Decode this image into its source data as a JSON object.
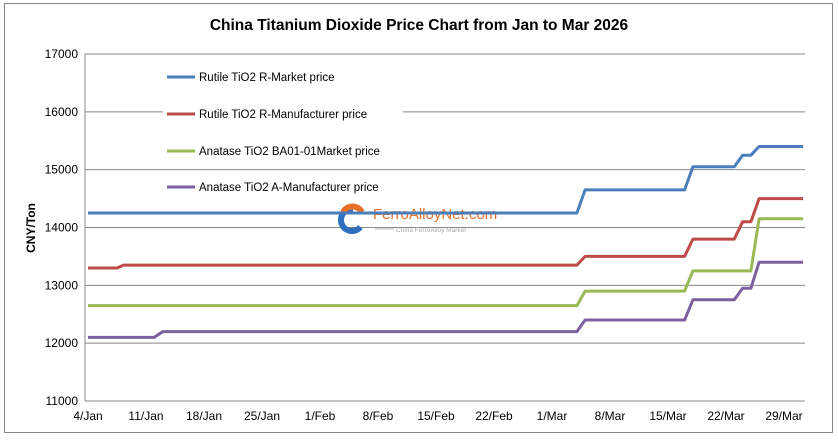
{
  "chart_data": {
    "type": "line",
    "title": "China Titanium Dioxide Price Chart from Jan to Mar 2026",
    "xlabel": "",
    "ylabel": "CNY/Ton",
    "ylim": [
      11000,
      17000
    ],
    "yticks": [
      11000,
      12000,
      13000,
      14000,
      15000,
      16000,
      17000
    ],
    "xlim_days": [
      0,
      86.5
    ],
    "x_unit": "days since 4/Jan",
    "xticks": [
      {
        "day": 0,
        "label": "4/Jan"
      },
      {
        "day": 7,
        "label": "11/Jan"
      },
      {
        "day": 14,
        "label": "18/Jan"
      },
      {
        "day": 21,
        "label": "25/Jan"
      },
      {
        "day": 28,
        "label": "1/Feb"
      },
      {
        "day": 35,
        "label": "8/Feb"
      },
      {
        "day": 42,
        "label": "15/Feb"
      },
      {
        "day": 49,
        "label": "22/Feb"
      },
      {
        "day": 56,
        "label": "1/Mar"
      },
      {
        "day": 63,
        "label": "8/Mar"
      },
      {
        "day": 70,
        "label": "15/Mar"
      },
      {
        "day": 77,
        "label": "22/Mar"
      },
      {
        "day": 84,
        "label": "29/Mar"
      }
    ],
    "grid": true,
    "legend_placement": "top-left",
    "series": [
      {
        "name": "Rutile TiO2 R-Market price",
        "color": "#4a7ebb",
        "points": [
          [
            0,
            14250
          ],
          [
            59,
            14250
          ],
          [
            60,
            14650
          ],
          [
            72,
            14650
          ],
          [
            73,
            15050
          ],
          [
            78,
            15050
          ],
          [
            79,
            15250
          ],
          [
            80,
            15250
          ],
          [
            81,
            15400
          ],
          [
            86.3,
            15400
          ]
        ]
      },
      {
        "name": "Rutile  TiO2 R-Manufacturer price",
        "color": "#be4b48",
        "points": [
          [
            0,
            13300
          ],
          [
            3.5,
            13300
          ],
          [
            4.3,
            13350
          ],
          [
            59,
            13350
          ],
          [
            60,
            13500
          ],
          [
            72,
            13500
          ],
          [
            73,
            13800
          ],
          [
            78,
            13800
          ],
          [
            79,
            14100
          ],
          [
            80,
            14100
          ],
          [
            81,
            14500
          ],
          [
            86.3,
            14500
          ]
        ]
      },
      {
        "name": "Anatase  TiO2 BA01-01Market price",
        "color": "#98b954",
        "points": [
          [
            0,
            12650
          ],
          [
            59,
            12650
          ],
          [
            60,
            12900
          ],
          [
            72,
            12900
          ],
          [
            73,
            13250
          ],
          [
            80,
            13250
          ],
          [
            81,
            14150
          ],
          [
            86.3,
            14150
          ]
        ]
      },
      {
        "name": "Anatase  TiO2 A-Manufacturer price",
        "color": "#7d60a0",
        "points": [
          [
            0,
            12100
          ],
          [
            8,
            12100
          ],
          [
            9,
            12200
          ],
          [
            59,
            12200
          ],
          [
            60,
            12400
          ],
          [
            72,
            12400
          ],
          [
            73,
            12750
          ],
          [
            78,
            12750
          ],
          [
            79,
            12950
          ],
          [
            80,
            12950
          ],
          [
            81,
            13400
          ],
          [
            86.3,
            13400
          ]
        ]
      }
    ]
  },
  "watermark": {
    "brand": "FerroAlloyNet.com",
    "tagline": "China FerroAlloy Market"
  }
}
